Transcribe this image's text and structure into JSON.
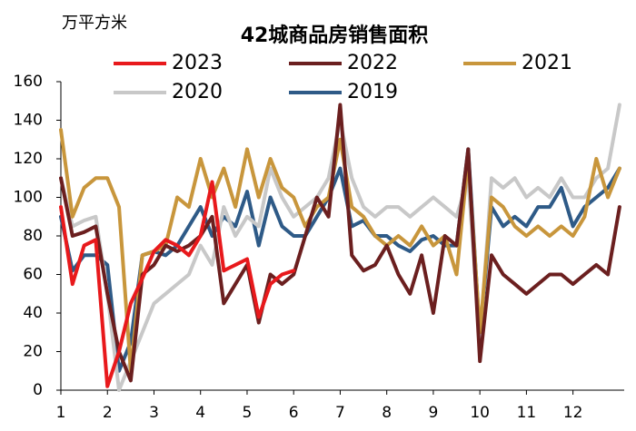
{
  "chart_data": {
    "type": "line",
    "title": "42城商品房销售面积",
    "y_label": "万平方米",
    "x": [
      1,
      1.25,
      1.5,
      1.75,
      2,
      2.25,
      2.5,
      2.75,
      3,
      3.25,
      3.5,
      3.75,
      4,
      4.25,
      4.5,
      4.75,
      5,
      5.25,
      5.5,
      5.75,
      6,
      6.25,
      6.5,
      6.75,
      7,
      7.25,
      7.5,
      7.75,
      8,
      8.25,
      8.5,
      8.75,
      9,
      9.25,
      9.5,
      9.75,
      10,
      10.25,
      10.5,
      10.75,
      11,
      11.25,
      11.5,
      11.75,
      12,
      12.25,
      12.5,
      12.75,
      13
    ],
    "xlim": [
      1,
      13.1
    ],
    "xticks": [
      1,
      2,
      3,
      4,
      5,
      6,
      7,
      8,
      9,
      10,
      11,
      12
    ],
    "ylim": [
      0,
      160
    ],
    "yticks": [
      0,
      20,
      40,
      60,
      80,
      100,
      120,
      140,
      160
    ],
    "series": [
      {
        "name": "2023",
        "color": "#e8191c",
        "values": [
          95,
          55,
          75,
          78,
          2,
          20,
          45,
          58,
          72,
          78,
          75,
          70,
          80,
          108,
          62,
          65,
          68,
          38,
          55,
          60,
          62,
          null,
          null,
          null,
          null,
          null,
          null,
          null,
          null,
          null,
          null,
          null,
          null,
          null,
          null,
          null,
          null,
          null,
          null,
          null,
          null,
          null,
          null,
          null,
          null,
          null,
          null,
          null,
          null
        ]
      },
      {
        "name": "2022",
        "color": "#6b1f1f",
        "values": [
          110,
          80,
          82,
          85,
          50,
          20,
          5,
          60,
          65,
          75,
          72,
          75,
          80,
          90,
          45,
          55,
          65,
          35,
          60,
          55,
          60,
          80,
          100,
          90,
          148,
          70,
          62,
          65,
          75,
          60,
          50,
          70,
          40,
          80,
          75,
          125,
          15,
          70,
          60,
          55,
          50,
          55,
          60,
          60,
          55,
          60,
          65,
          60,
          95
        ]
      },
      {
        "name": "2021",
        "color": "#c8963c",
        "values": [
          135,
          90,
          105,
          110,
          110,
          95,
          10,
          70,
          72,
          75,
          100,
          95,
          120,
          100,
          115,
          95,
          125,
          100,
          120,
          105,
          100,
          85,
          95,
          100,
          130,
          95,
          90,
          80,
          75,
          80,
          75,
          85,
          75,
          80,
          60,
          120,
          30,
          100,
          95,
          85,
          80,
          85,
          80,
          85,
          80,
          90,
          120,
          100,
          115
        ]
      },
      {
        "name": "2020",
        "color": "#c8c8c8",
        "values": [
          110,
          85,
          88,
          90,
          50,
          0,
          15,
          30,
          45,
          50,
          55,
          60,
          75,
          65,
          95,
          80,
          90,
          85,
          115,
          100,
          90,
          95,
          100,
          110,
          140,
          110,
          95,
          90,
          95,
          95,
          90,
          95,
          100,
          95,
          90,
          110,
          25,
          110,
          105,
          110,
          100,
          105,
          100,
          110,
          100,
          100,
          110,
          115,
          148
        ]
      },
      {
        "name": "2019",
        "color": "#2e5a87",
        "values": [
          90,
          62,
          70,
          70,
          65,
          10,
          25,
          70,
          72,
          70,
          75,
          85,
          95,
          80,
          90,
          85,
          103,
          75,
          100,
          85,
          80,
          80,
          90,
          100,
          115,
          85,
          88,
          80,
          80,
          75,
          72,
          78,
          80,
          75,
          75,
          125,
          28,
          95,
          85,
          90,
          85,
          95,
          95,
          105,
          85,
          95,
          100,
          105,
          115
        ]
      }
    ]
  }
}
